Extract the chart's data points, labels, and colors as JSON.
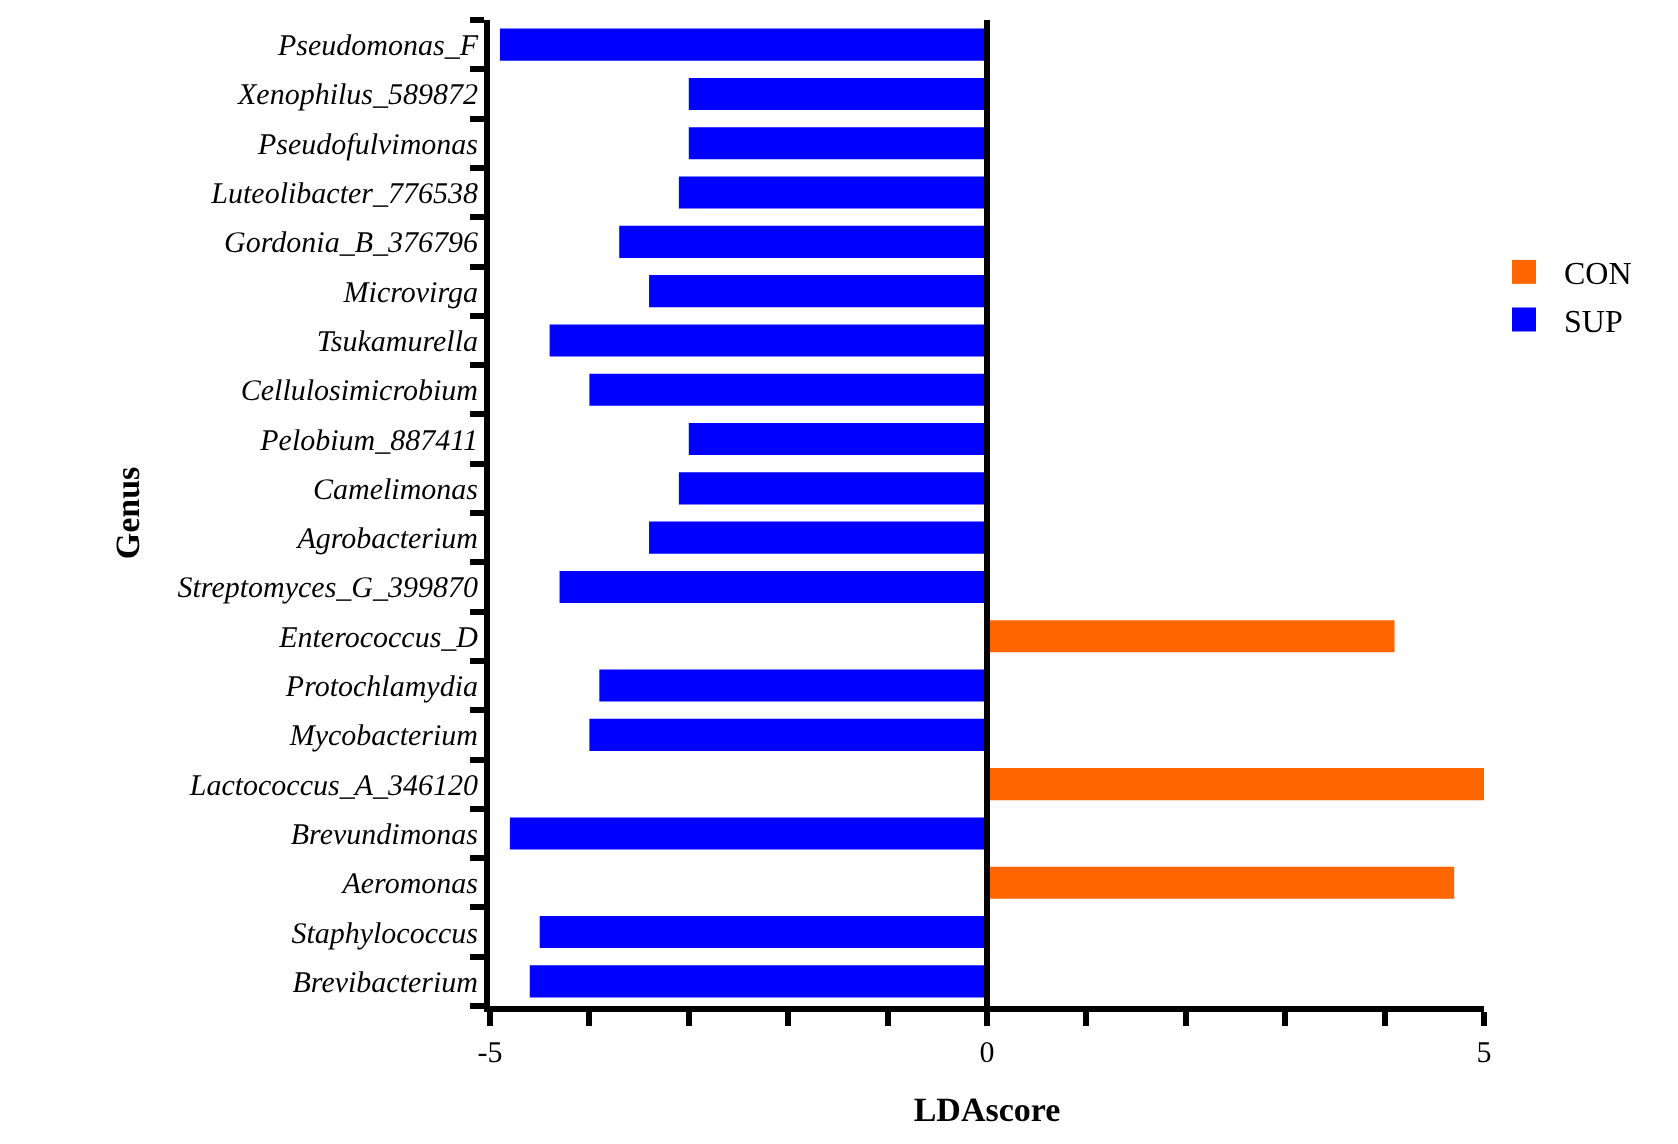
{
  "chart_data": {
    "type": "bar",
    "orientation": "horizontal",
    "xlabel": "LDAscore",
    "ylabel": "Genus",
    "categories": [
      "Pseudomonas_F",
      "Xenophilus_589872",
      "Pseudofulvimonas",
      "Luteolibacter_776538",
      "Gordonia_B_376796",
      "Microvirga",
      "Tsukamurella",
      "Cellulosimicrobium",
      "Pelobium_887411",
      "Camelimonas",
      "Agrobacterium",
      "Streptomyces_G_399870",
      "Enterococcus_D",
      "Protochlamydia",
      "Mycobacterium",
      "Lactococcus_A_346120",
      "Brevundimonas",
      "Aeromonas",
      "Staphylococcus",
      "Brevibacterium"
    ],
    "series": [
      {
        "name": "CON",
        "color": "#ff6600",
        "values": [
          null,
          null,
          null,
          null,
          null,
          null,
          null,
          null,
          null,
          null,
          null,
          null,
          4.1,
          null,
          null,
          5.0,
          null,
          4.7,
          null,
          null
        ]
      },
      {
        "name": "SUP",
        "color": "#0000ff",
        "values": [
          -4.9,
          -3.0,
          -3.0,
          -3.1,
          -3.7,
          -3.4,
          -4.4,
          -4.0,
          -3.0,
          -3.1,
          -3.4,
          -4.3,
          null,
          -3.9,
          -4.0,
          null,
          -4.8,
          null,
          -4.5,
          -4.6
        ]
      }
    ],
    "xlim": [
      -5,
      5
    ],
    "xticks": [
      -5,
      {
        "value": -4,
        "label": null
      },
      {
        "value": -3,
        "label": null
      },
      {
        "value": -2,
        "label": null
      },
      {
        "value": -1,
        "label": null
      },
      0,
      {
        "value": 1,
        "label": null
      },
      {
        "value": 2,
        "label": null
      },
      {
        "value": 3,
        "label": null
      },
      {
        "value": 4,
        "label": null
      },
      5
    ],
    "ref_lines": [
      {
        "axis": "x",
        "value": 0,
        "color": "#000000",
        "line_style": "solid"
      }
    ],
    "legend": "right"
  }
}
